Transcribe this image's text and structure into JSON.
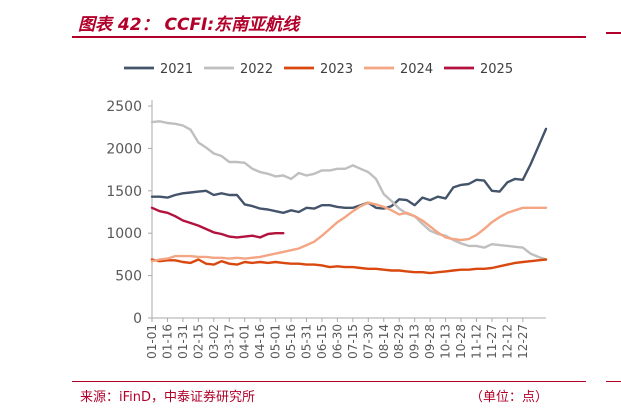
{
  "figure": {
    "title": "图表 42：  CCFI:东南亚航线",
    "source": "来源：iFinD，中泰证券研究所",
    "unit": "（单位：点）"
  },
  "colors": {
    "accent": "#b2002a",
    "axis": "#aaaaaa",
    "tick_text": "#595959"
  },
  "chart_data": {
    "type": "line",
    "ylim": [
      0,
      2500
    ],
    "yticks": [
      0,
      500,
      1000,
      1500,
      2000,
      2500
    ],
    "x_tick_labels": [
      "01-01",
      "01-16",
      "01-31",
      "02-15",
      "03-02",
      "03-17",
      "04-01",
      "04-16",
      "05-01",
      "05-16",
      "05-31",
      "06-15",
      "06-30",
      "07-15",
      "07-30",
      "08-14",
      "08-29",
      "09-13",
      "09-28",
      "10-13",
      "10-28",
      "11-12",
      "11-27",
      "12-12",
      "12-27"
    ],
    "x_ticks_every": 2,
    "x_range": [
      0,
      51
    ],
    "grid": false,
    "legend_placement": "top",
    "series": [
      {
        "name": "2021",
        "color": "#44546a",
        "x": [
          0,
          1,
          2,
          3,
          4,
          5,
          6,
          7,
          8,
          9,
          10,
          11,
          12,
          13,
          14,
          15,
          16,
          17,
          18,
          19,
          20,
          21,
          22,
          23,
          24,
          25,
          26,
          27,
          28,
          29,
          30,
          31,
          32,
          33,
          34,
          35,
          36,
          37,
          38,
          39,
          40,
          41,
          42,
          43,
          44,
          45,
          46,
          47,
          48,
          49,
          50,
          51
        ],
        "values": [
          1430,
          1430,
          1420,
          1450,
          1470,
          1480,
          1490,
          1500,
          1450,
          1470,
          1450,
          1450,
          1340,
          1320,
          1290,
          1280,
          1260,
          1240,
          1270,
          1250,
          1300,
          1290,
          1330,
          1330,
          1310,
          1300,
          1300,
          1330,
          1360,
          1300,
          1290,
          1320,
          1400,
          1390,
          1330,
          1420,
          1390,
          1430,
          1410,
          1540,
          1570,
          1580,
          1630,
          1620,
          1500,
          1490,
          1600,
          1640,
          1630,
          1810,
          2020,
          2230
        ]
      },
      {
        "name": "2022",
        "color": "#bfbfbf",
        "x": [
          0,
          1,
          2,
          3,
          4,
          5,
          6,
          7,
          8,
          9,
          10,
          11,
          12,
          13,
          14,
          15,
          16,
          17,
          18,
          19,
          20,
          21,
          22,
          23,
          24,
          25,
          26,
          27,
          28,
          29,
          30,
          31,
          32,
          33,
          34,
          35,
          36,
          37,
          38,
          39,
          40,
          41,
          42,
          43,
          44,
          45,
          46,
          47,
          48,
          49,
          50,
          51
        ],
        "values": [
          2310,
          2320,
          2300,
          2290,
          2270,
          2220,
          2070,
          2010,
          1940,
          1910,
          1840,
          1840,
          1830,
          1760,
          1720,
          1700,
          1670,
          1680,
          1640,
          1710,
          1680,
          1700,
          1740,
          1740,
          1760,
          1760,
          1800,
          1760,
          1720,
          1640,
          1460,
          1380,
          1290,
          1230,
          1200,
          1110,
          1030,
          990,
          970,
          920,
          880,
          850,
          850,
          830,
          870,
          860,
          850,
          840,
          830,
          760,
          720,
          690
        ]
      },
      {
        "name": "2023",
        "color": "#d9480f",
        "x": [
          0,
          1,
          2,
          3,
          4,
          5,
          6,
          7,
          8,
          9,
          10,
          11,
          12,
          13,
          14,
          15,
          16,
          17,
          18,
          19,
          20,
          21,
          22,
          23,
          24,
          25,
          26,
          27,
          28,
          29,
          30,
          31,
          32,
          33,
          34,
          35,
          36,
          37,
          38,
          39,
          40,
          41,
          42,
          43,
          44,
          45,
          46,
          47,
          48,
          49,
          50,
          51
        ],
        "values": [
          690,
          670,
          680,
          680,
          660,
          650,
          690,
          640,
          630,
          670,
          640,
          630,
          660,
          650,
          660,
          650,
          660,
          650,
          640,
          640,
          630,
          630,
          620,
          600,
          610,
          600,
          600,
          590,
          580,
          580,
          570,
          560,
          560,
          550,
          540,
          540,
          530,
          540,
          550,
          560,
          570,
          570,
          580,
          580,
          590,
          610,
          630,
          650,
          660,
          670,
          680,
          690
        ]
      },
      {
        "name": "2024",
        "color": "#f4a583",
        "x": [
          0,
          1,
          2,
          3,
          4,
          5,
          6,
          7,
          8,
          9,
          10,
          11,
          12,
          13,
          14,
          15,
          16,
          17,
          18,
          19,
          20,
          21,
          22,
          23,
          24,
          25,
          26,
          27,
          28,
          29,
          30,
          31,
          32,
          33,
          34,
          35,
          36,
          37,
          38,
          39,
          40,
          41,
          42,
          43,
          44,
          45,
          46,
          47,
          48,
          49,
          50,
          51
        ],
        "values": [
          670,
          690,
          700,
          730,
          730,
          730,
          720,
          720,
          710,
          710,
          700,
          710,
          700,
          710,
          720,
          740,
          760,
          780,
          800,
          820,
          860,
          900,
          970,
          1050,
          1130,
          1190,
          1260,
          1320,
          1360,
          1340,
          1310,
          1270,
          1220,
          1240,
          1200,
          1150,
          1080,
          1010,
          950,
          930,
          920,
          930,
          980,
          1050,
          1130,
          1190,
          1240,
          1270,
          1300,
          1300,
          1300,
          1300
        ]
      },
      {
        "name": "2025",
        "color": "#b2123d",
        "x": [
          0,
          1,
          2,
          3,
          4,
          5,
          6,
          7,
          8,
          9,
          10,
          11,
          12,
          13,
          14,
          15,
          16,
          17
        ],
        "values": [
          1300,
          1260,
          1240,
          1200,
          1150,
          1120,
          1090,
          1050,
          1010,
          990,
          960,
          950,
          960,
          970,
          950,
          990,
          1000,
          1000
        ]
      }
    ]
  }
}
